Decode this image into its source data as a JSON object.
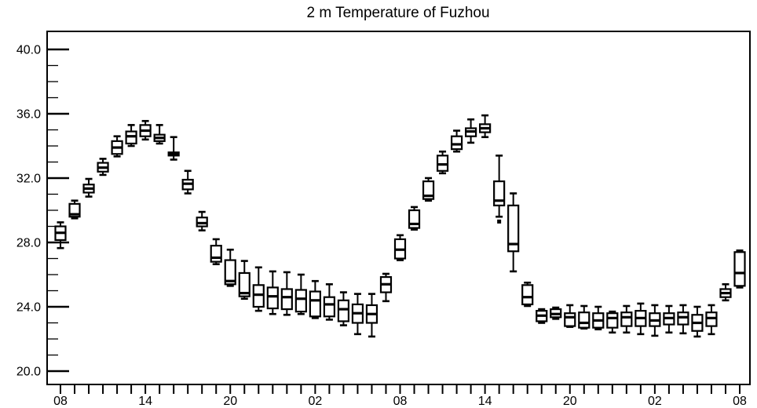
{
  "title": "2 m Temperature of Fuzhou",
  "colors": {
    "foreground": "#000000",
    "background": "#ffffff"
  },
  "chart_data": {
    "type": "boxplot",
    "title": "2 m Temperature of Fuzhou",
    "xlabel": "",
    "ylabel": "",
    "x_unit": "hour of day over a 48-hour period",
    "y_unit": "degrees Celsius",
    "ylim": [
      19.2,
      41.1
    ],
    "ytick_major": [
      20.0,
      24.0,
      28.0,
      32.0,
      36.0,
      40.0
    ],
    "ytick_labels": [
      "20.0",
      "24.0",
      "28.0",
      "32.0",
      "36.0",
      "40.0"
    ],
    "ytick_minor_step": 1.0,
    "xtick_minor_step_hours": 1,
    "xtick_labeled": [
      {
        "index": 0,
        "label": "08"
      },
      {
        "index": 6,
        "label": "14"
      },
      {
        "index": 12,
        "label": "20"
      },
      {
        "index": 18,
        "label": "02"
      },
      {
        "index": 24,
        "label": "08"
      },
      {
        "index": 30,
        "label": "14"
      },
      {
        "index": 36,
        "label": "20"
      },
      {
        "index": 42,
        "label": "02"
      },
      {
        "index": 48,
        "label": "08"
      }
    ],
    "grid": false,
    "legend": "none",
    "boxes": [
      {
        "hour": "08",
        "lo": 27.65,
        "q1": 28.15,
        "med": 28.6,
        "q3": 29.0,
        "hi": 29.25
      },
      {
        "hour": "09",
        "lo": 29.5,
        "q1": 29.6,
        "med": 29.75,
        "q3": 30.4,
        "hi": 30.6
      },
      {
        "hour": "10",
        "lo": 30.85,
        "q1": 31.1,
        "med": 31.35,
        "q3": 31.6,
        "hi": 31.95
      },
      {
        "hour": "11",
        "lo": 32.2,
        "q1": 32.4,
        "med": 32.65,
        "q3": 32.95,
        "hi": 33.2
      },
      {
        "hour": "12",
        "lo": 33.35,
        "q1": 33.5,
        "med": 33.9,
        "q3": 34.3,
        "hi": 34.6
      },
      {
        "hour": "13",
        "lo": 34.0,
        "q1": 34.15,
        "med": 34.6,
        "q3": 34.9,
        "hi": 35.3
      },
      {
        "hour": "14",
        "lo": 34.4,
        "q1": 34.6,
        "med": 34.95,
        "q3": 35.3,
        "hi": 35.55
      },
      {
        "hour": "15",
        "lo": 34.15,
        "q1": 34.3,
        "med": 34.5,
        "q3": 34.7,
        "hi": 35.3
      },
      {
        "hour": "16",
        "lo": 33.15,
        "q1": 33.4,
        "med": 33.5,
        "q3": 33.6,
        "hi": 34.55
      },
      {
        "hour": "17",
        "lo": 31.05,
        "q1": 31.3,
        "med": 31.65,
        "q3": 31.9,
        "hi": 32.45
      },
      {
        "hour": "18",
        "lo": 28.75,
        "q1": 29.0,
        "med": 29.2,
        "q3": 29.55,
        "hi": 29.9
      },
      {
        "hour": "19",
        "lo": 26.65,
        "q1": 26.8,
        "med": 27.05,
        "q3": 27.8,
        "hi": 28.2
      },
      {
        "hour": "20",
        "lo": 25.3,
        "q1": 25.4,
        "med": 25.6,
        "q3": 26.9,
        "hi": 27.55
      },
      {
        "hour": "21",
        "lo": 24.5,
        "q1": 24.65,
        "med": 24.85,
        "q3": 26.1,
        "hi": 26.85
      },
      {
        "hour": "22",
        "lo": 23.75,
        "q1": 24.0,
        "med": 24.75,
        "q3": 25.35,
        "hi": 26.45
      },
      {
        "hour": "23",
        "lo": 23.55,
        "q1": 23.9,
        "med": 24.65,
        "q3": 25.2,
        "hi": 26.2
      },
      {
        "hour": "00",
        "lo": 23.5,
        "q1": 23.85,
        "med": 24.6,
        "q3": 25.1,
        "hi": 26.15
      },
      {
        "hour": "01",
        "lo": 23.55,
        "q1": 23.7,
        "med": 24.5,
        "q3": 25.05,
        "hi": 26.0
      },
      {
        "hour": "02",
        "lo": 23.3,
        "q1": 23.4,
        "med": 24.4,
        "q3": 24.95,
        "hi": 25.6
      },
      {
        "hour": "03",
        "lo": 23.2,
        "q1": 23.4,
        "med": 24.15,
        "q3": 24.6,
        "hi": 25.4
      },
      {
        "hour": "04",
        "lo": 22.85,
        "q1": 23.1,
        "med": 23.85,
        "q3": 24.4,
        "hi": 24.9
      },
      {
        "hour": "05",
        "lo": 22.3,
        "q1": 23.0,
        "med": 23.6,
        "q3": 24.15,
        "hi": 24.8
      },
      {
        "hour": "06",
        "lo": 22.15,
        "q1": 23.0,
        "med": 23.55,
        "q3": 24.1,
        "hi": 24.8
      },
      {
        "hour": "07",
        "lo": 24.35,
        "q1": 24.9,
        "med": 25.4,
        "q3": 25.85,
        "hi": 26.05
      },
      {
        "hour": "08",
        "lo": 26.9,
        "q1": 27.0,
        "med": 27.55,
        "q3": 28.2,
        "hi": 28.45
      },
      {
        "hour": "09",
        "lo": 28.8,
        "q1": 28.9,
        "med": 29.15,
        "q3": 30.0,
        "hi": 30.2
      },
      {
        "hour": "10",
        "lo": 30.6,
        "q1": 30.7,
        "med": 30.9,
        "q3": 31.8,
        "hi": 32.0
      },
      {
        "hour": "11",
        "lo": 32.3,
        "q1": 32.45,
        "med": 32.85,
        "q3": 33.4,
        "hi": 33.65
      },
      {
        "hour": "12",
        "lo": 33.65,
        "q1": 33.8,
        "med": 34.1,
        "q3": 34.6,
        "hi": 34.95
      },
      {
        "hour": "13",
        "lo": 34.2,
        "q1": 34.6,
        "med": 34.9,
        "q3": 35.1,
        "hi": 35.65
      },
      {
        "hour": "14",
        "lo": 34.55,
        "q1": 34.85,
        "med": 35.1,
        "q3": 35.35,
        "hi": 35.9
      },
      {
        "hour": "15",
        "lo": 29.6,
        "q1": 30.3,
        "med": 30.6,
        "q3": 31.8,
        "hi": 33.4
      },
      {
        "hour": "16",
        "lo": 26.2,
        "q1": 27.45,
        "med": 27.9,
        "q3": 30.3,
        "hi": 31.05
      },
      {
        "hour": "17",
        "lo": 24.05,
        "q1": 24.15,
        "med": 24.6,
        "q3": 25.35,
        "hi": 25.5
      },
      {
        "hour": "18",
        "lo": 23.0,
        "q1": 23.1,
        "med": 23.45,
        "q3": 23.75,
        "hi": 23.85
      },
      {
        "hour": "19",
        "lo": 23.25,
        "q1": 23.35,
        "med": 23.55,
        "q3": 23.85,
        "hi": 23.95
      },
      {
        "hour": "20",
        "lo": 22.75,
        "q1": 22.8,
        "med": 23.35,
        "q3": 23.6,
        "hi": 24.1
      },
      {
        "hour": "21",
        "lo": 22.65,
        "q1": 22.7,
        "med": 23.0,
        "q3": 23.65,
        "hi": 24.05
      },
      {
        "hour": "22",
        "lo": 22.6,
        "q1": 22.7,
        "med": 23.15,
        "q3": 23.6,
        "hi": 24.0
      },
      {
        "hour": "23",
        "lo": 22.4,
        "q1": 22.7,
        "med": 23.3,
        "q3": 23.6,
        "hi": 23.7
      },
      {
        "hour": "00",
        "lo": 22.4,
        "q1": 22.8,
        "med": 23.35,
        "q3": 23.65,
        "hi": 24.05
      },
      {
        "hour": "01",
        "lo": 22.3,
        "q1": 22.8,
        "med": 23.3,
        "q3": 23.75,
        "hi": 24.2
      },
      {
        "hour": "02",
        "lo": 22.2,
        "q1": 22.8,
        "med": 23.15,
        "q3": 23.6,
        "hi": 24.1
      },
      {
        "hour": "03",
        "lo": 22.4,
        "q1": 22.9,
        "med": 23.3,
        "q3": 23.6,
        "hi": 24.05
      },
      {
        "hour": "04",
        "lo": 22.35,
        "q1": 22.9,
        "med": 23.35,
        "q3": 23.65,
        "hi": 24.1
      },
      {
        "hour": "05",
        "lo": 22.15,
        "q1": 22.5,
        "med": 23.0,
        "q3": 23.5,
        "hi": 24.0
      },
      {
        "hour": "06",
        "lo": 22.3,
        "q1": 22.8,
        "med": 23.3,
        "q3": 23.65,
        "hi": 24.1
      },
      {
        "hour": "07",
        "lo": 24.4,
        "q1": 24.6,
        "med": 24.85,
        "q3": 25.1,
        "hi": 25.4
      },
      {
        "hour": "08",
        "lo": 25.2,
        "q1": 25.3,
        "med": 26.1,
        "q3": 27.4,
        "hi": 27.5
      }
    ],
    "outliers": [
      {
        "index": 31,
        "value": 29.3
      }
    ]
  }
}
